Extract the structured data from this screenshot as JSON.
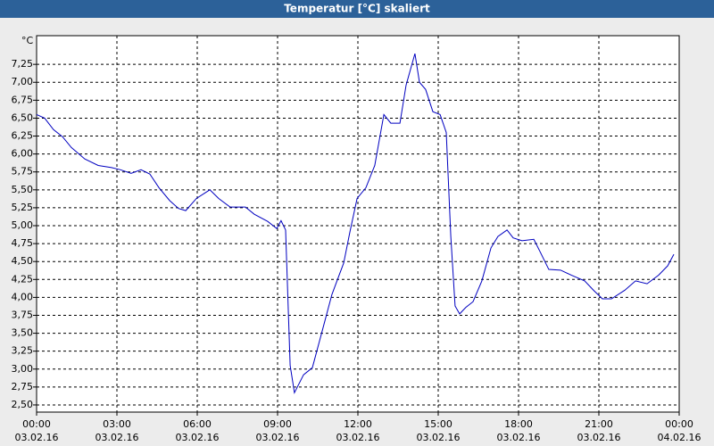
{
  "chart_data": {
    "type": "line",
    "title": "Temperatur [°C] skaliert",
    "y_unit": "°C",
    "x": [
      0,
      0.3,
      0.63,
      0.97,
      1.3,
      1.8,
      2.3,
      2.8,
      3.13,
      3.53,
      3.9,
      4.23,
      4.57,
      4.97,
      5.3,
      5.57,
      5.97,
      6.47,
      6.8,
      7.23,
      7.8,
      8.13,
      8.63,
      8.97,
      9.13,
      9.3,
      9.47,
      9.63,
      9.97,
      10.3,
      10.63,
      11.03,
      11.47,
      11.7,
      11.97,
      12.3,
      12.63,
      12.97,
      13.23,
      13.57,
      13.8,
      14.13,
      14.3,
      14.53,
      14.8,
      15.07,
      15.3,
      15.47,
      15.63,
      15.8,
      16.03,
      16.3,
      16.63,
      16.97,
      17.23,
      17.57,
      17.8,
      18.13,
      18.57,
      18.8,
      19.13,
      19.57,
      19.97,
      20.47,
      20.8,
      21.13,
      21.47,
      21.97,
      22.37,
      22.8,
      23.23,
      23.57,
      23.8
    ],
    "series": [
      {
        "color": "#0000c0",
        "values": [
          6.55,
          6.5,
          6.34,
          6.24,
          6.09,
          5.93,
          5.84,
          5.81,
          5.78,
          5.73,
          5.78,
          5.72,
          5.53,
          5.35,
          5.24,
          5.21,
          5.38,
          5.5,
          5.38,
          5.26,
          5.26,
          5.16,
          5.06,
          4.96,
          5.07,
          4.94,
          3.05,
          2.67,
          2.92,
          3.02,
          3.48,
          4.04,
          4.48,
          4.91,
          5.38,
          5.53,
          5.84,
          6.55,
          6.43,
          6.43,
          6.96,
          7.4,
          7.0,
          6.9,
          6.59,
          6.55,
          6.3,
          4.85,
          3.88,
          3.77,
          3.86,
          3.94,
          4.23,
          4.69,
          4.85,
          4.94,
          4.83,
          4.79,
          4.81,
          4.64,
          4.39,
          4.38,
          4.31,
          4.23,
          4.1,
          3.98,
          3.98,
          4.1,
          4.23,
          4.19,
          4.31,
          4.44,
          4.6
        ]
      }
    ],
    "xlim": [
      0,
      24
    ],
    "xticks": [
      {
        "value": 0,
        "label": "00:00"
      },
      {
        "value": 3,
        "label": "03:00"
      },
      {
        "value": 6,
        "label": "06:00"
      },
      {
        "value": 9,
        "label": "09:00"
      },
      {
        "value": 12,
        "label": "12:00"
      },
      {
        "value": 15,
        "label": "15:00"
      },
      {
        "value": 18,
        "label": "18:00"
      },
      {
        "value": 21,
        "label": "21:00"
      },
      {
        "value": 24,
        "label": "00:00"
      }
    ],
    "xtick_dates": [
      "03.02.16",
      "03.02.16",
      "03.02.16",
      "03.02.16",
      "03.02.16",
      "03.02.16",
      "03.02.16",
      "03.02.16",
      "04.02.16"
    ],
    "ylim": [
      2.4,
      7.65
    ],
    "yticks": [
      {
        "value": 2.5,
        "label": "2,50"
      },
      {
        "value": 2.75,
        "label": "2,75"
      },
      {
        "value": 3,
        "label": "3,00"
      },
      {
        "value": 3.25,
        "label": "3,25"
      },
      {
        "value": 3.5,
        "label": "3,50"
      },
      {
        "value": 3.75,
        "label": "3,75"
      },
      {
        "value": 4,
        "label": "4,00"
      },
      {
        "value": 4.25,
        "label": "4,25"
      },
      {
        "value": 4.5,
        "label": "4,50"
      },
      {
        "value": 4.75,
        "label": "4,75"
      },
      {
        "value": 5,
        "label": "5,00"
      },
      {
        "value": 5.25,
        "label": "5,25"
      },
      {
        "value": 5.5,
        "label": "5,50"
      },
      {
        "value": 5.75,
        "label": "5,75"
      },
      {
        "value": 6,
        "label": "6,00"
      },
      {
        "value": 6.25,
        "label": "6,25"
      },
      {
        "value": 6.5,
        "label": "6,50"
      },
      {
        "value": 6.75,
        "label": "6,75"
      },
      {
        "value": 7,
        "label": "7,00"
      },
      {
        "value": 7.25,
        "label": "7,25"
      }
    ],
    "grid": true
  }
}
